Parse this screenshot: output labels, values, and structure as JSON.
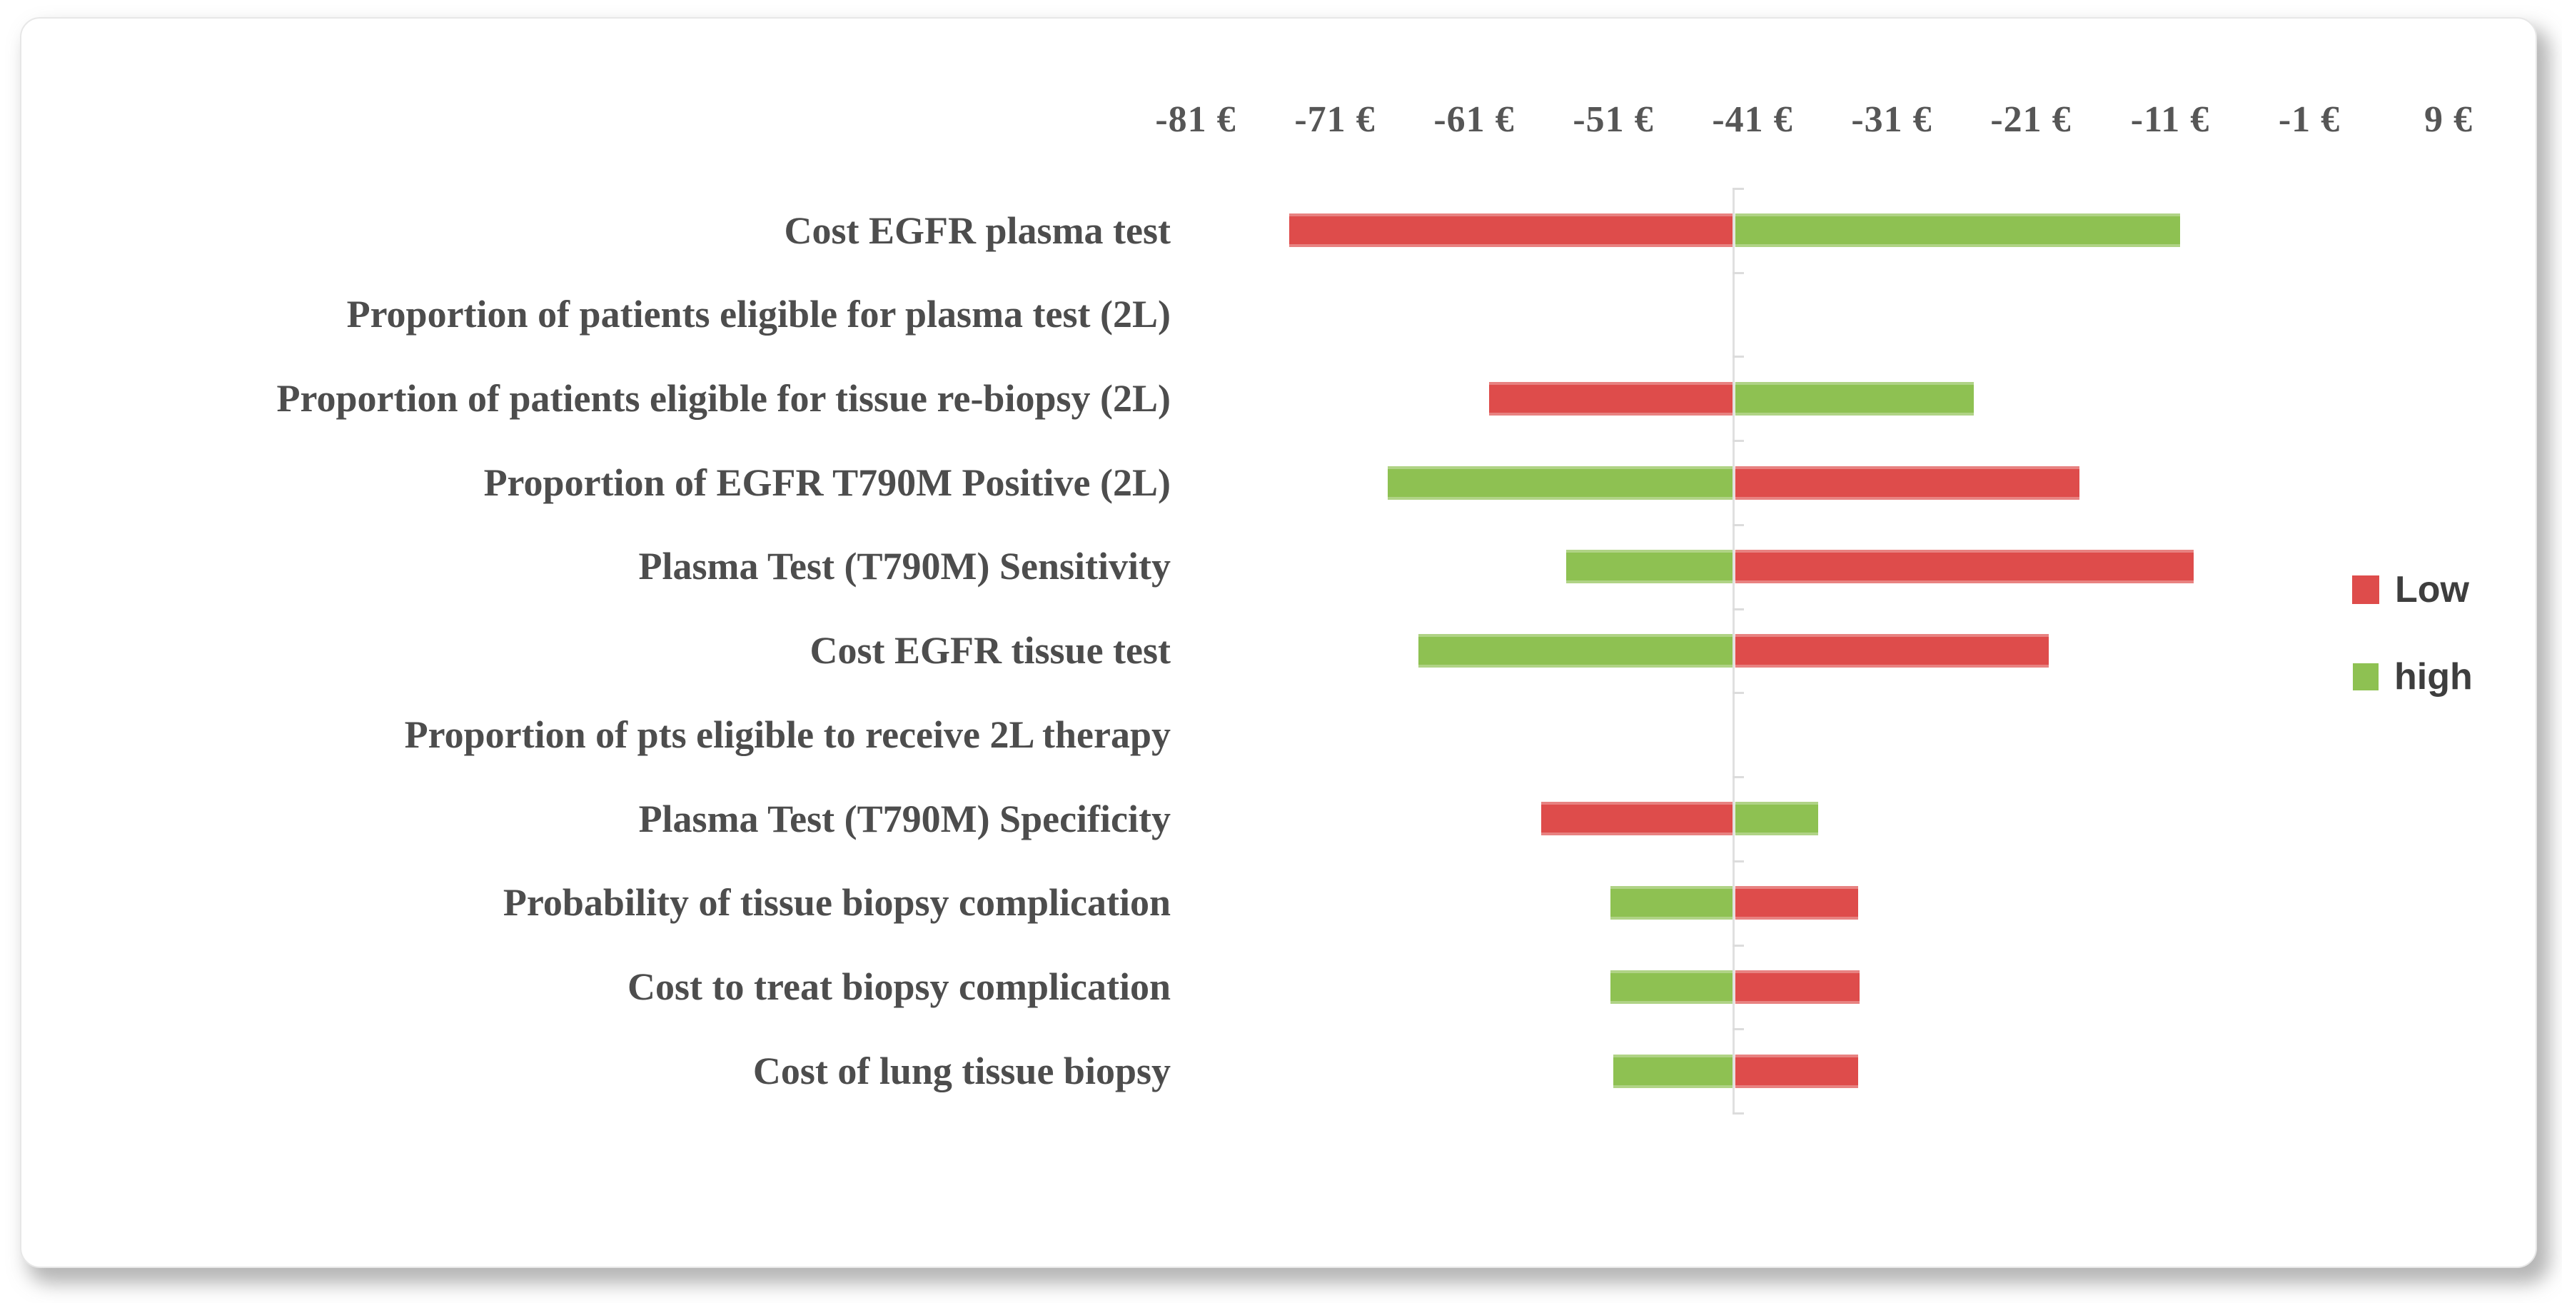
{
  "chart_data": {
    "type": "bar",
    "variant": "tornado-sensitivity",
    "title": "",
    "unit": "€",
    "base_value": -42.4,
    "axis": {
      "tick_labels": [
        "-81 €",
        "-71 €",
        "-61 €",
        "-51 €",
        "-41 €",
        "-31 €",
        "-21 €",
        "-11 €",
        "-1 €",
        "9 €"
      ],
      "tick_values": [
        -81,
        -71,
        -61,
        -51,
        -41,
        -31,
        -21,
        -11,
        -1,
        9
      ],
      "grid": false,
      "orientation": "horizontal-bars-value-axis-on-top"
    },
    "categories": [
      "Cost EGFR plasma test",
      "Proportion of patients eligible for plasma test (2L)",
      "Proportion of patients eligible for tissue re-biopsy (2L)",
      "Proportion of EGFR T790M Positive (2L)",
      "Plasma Test (T790M) Sensitivity",
      "Cost EGFR tissue test",
      "Proportion of pts eligible to receive 2L therapy",
      "Plasma Test (T790M) Specificity",
      "Probability of tissue biopsy complication",
      "Cost to treat biopsy complication",
      "Cost of lung tissue biopsy"
    ],
    "series": [
      {
        "name": "Low",
        "color": "#DE4C4B",
        "values": [
          -74.3,
          null,
          -59.9,
          -17.5,
          -9.3,
          -19.7,
          null,
          -56.2,
          -33.4,
          -33.3,
          -33.4
        ]
      },
      {
        "name": "high",
        "color": "#8EC152",
        "values": [
          -10.3,
          null,
          -25.1,
          -67.2,
          -54.4,
          -65.0,
          null,
          -36.3,
          -51.2,
          -51.2,
          -51.0
        ]
      }
    ],
    "legend": [
      {
        "label": "Low",
        "color": "#DE4C4B"
      },
      {
        "label": "high",
        "color": "#8EC152"
      }
    ],
    "layout_hints": {
      "legend_position": "right",
      "bars_extend_from_base_value": true
    }
  }
}
